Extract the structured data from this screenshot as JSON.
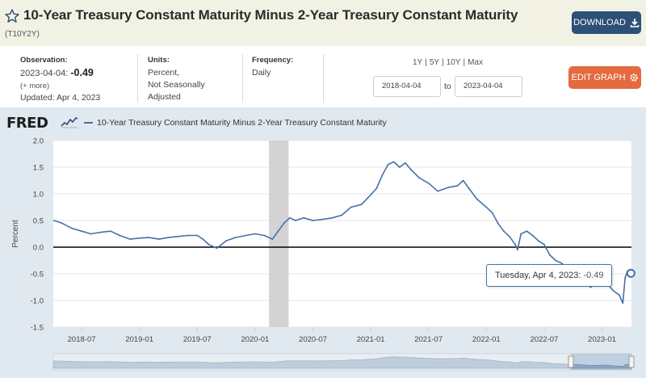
{
  "header": {
    "title": "10-Year Treasury Constant Maturity Minus 2-Year Treasury Constant Maturity",
    "series_id": "(T10Y2Y)",
    "download_label": "DOWNLOAD"
  },
  "meta": {
    "observation_label": "Observation:",
    "observation_date": "2023-04-04:",
    "observation_value": "-0.49",
    "more_label": "(+ more)",
    "updated": "Updated: Apr 4, 2023",
    "units_label": "Units:",
    "units_line1": "Percent,",
    "units_line2": "Not Seasonally",
    "units_line3": "Adjusted",
    "frequency_label": "Frequency:",
    "frequency_value": "Daily"
  },
  "controls": {
    "range_1y": "1Y",
    "range_5y": "5Y",
    "range_10y": "10Y",
    "range_max": "Max",
    "separator": "|",
    "start_date": "2018-04-04",
    "to_label": "to",
    "end_date": "2023-04-04",
    "edit_label": "EDIT GRAPH"
  },
  "graph": {
    "logo_text": "FRED",
    "legend_label": "10-Year Treasury Constant Maturity Minus 2-Year Treasury Constant Maturity",
    "tooltip_date": "Tuesday, Apr 4, 2023:",
    "tooltip_value": "-0.49"
  },
  "colors": {
    "series": "#4572a7",
    "recession": "#d3d3d3",
    "download_button": "#2d4f78",
    "edit_button": "#e56a3f",
    "graph_background": "#e1e9f0"
  },
  "chart_data": {
    "type": "line",
    "title": "10-Year Treasury Constant Maturity Minus 2-Year Treasury Constant Maturity",
    "ylabel": "Percent",
    "ylim": [
      -1.5,
      2.0
    ],
    "yticks": [
      "2.0",
      "1.5",
      "1.0",
      "0.5",
      "0.0",
      "-0.5",
      "-1.0",
      "-1.5"
    ],
    "ytick_values": [
      2.0,
      1.5,
      1.0,
      0.5,
      0.0,
      -0.5,
      -1.0,
      -1.5
    ],
    "xlim": [
      2018.255,
      2023.255
    ],
    "xticks": [
      "2018-07",
      "2019-01",
      "2019-07",
      "2020-01",
      "2020-07",
      "2021-01",
      "2021-07",
      "2022-01",
      "2022-07",
      "2023-01"
    ],
    "xtick_values": [
      2018.5,
      2019.0,
      2019.5,
      2020.0,
      2020.5,
      2021.0,
      2021.5,
      2022.0,
      2022.5,
      2023.0
    ],
    "recession": [
      2020.12,
      2020.29
    ],
    "series": [
      {
        "name": "T10Y2Y",
        "x": [
          2018.26,
          2018.33,
          2018.42,
          2018.5,
          2018.58,
          2018.67,
          2018.75,
          2018.83,
          2018.92,
          2019.0,
          2019.08,
          2019.17,
          2019.25,
          2019.33,
          2019.42,
          2019.5,
          2019.55,
          2019.6,
          2019.67,
          2019.75,
          2019.83,
          2019.92,
          2020.0,
          2020.08,
          2020.15,
          2020.2,
          2020.25,
          2020.3,
          2020.35,
          2020.42,
          2020.5,
          2020.58,
          2020.67,
          2020.75,
          2020.83,
          2020.92,
          2021.0,
          2021.05,
          2021.1,
          2021.15,
          2021.2,
          2021.25,
          2021.3,
          2021.35,
          2021.42,
          2021.5,
          2021.58,
          2021.67,
          2021.75,
          2021.8,
          2021.85,
          2021.92,
          2022.0,
          2022.05,
          2022.1,
          2022.15,
          2022.2,
          2022.25,
          2022.27,
          2022.3,
          2022.35,
          2022.4,
          2022.45,
          2022.5,
          2022.55,
          2022.6,
          2022.65,
          2022.7,
          2022.75,
          2022.8,
          2022.85,
          2022.9,
          2022.95,
          2023.0,
          2023.05,
          2023.1,
          2023.15,
          2023.18,
          2023.2,
          2023.22,
          2023.25
        ],
        "y": [
          0.5,
          0.45,
          0.35,
          0.3,
          0.25,
          0.28,
          0.3,
          0.22,
          0.15,
          0.17,
          0.18,
          0.15,
          0.18,
          0.2,
          0.22,
          0.22,
          0.15,
          0.05,
          -0.02,
          0.12,
          0.18,
          0.22,
          0.25,
          0.22,
          0.15,
          0.3,
          0.45,
          0.55,
          0.5,
          0.55,
          0.5,
          0.52,
          0.55,
          0.6,
          0.75,
          0.8,
          0.98,
          1.1,
          1.35,
          1.55,
          1.6,
          1.5,
          1.58,
          1.45,
          1.3,
          1.2,
          1.05,
          1.12,
          1.15,
          1.25,
          1.1,
          0.9,
          0.75,
          0.65,
          0.45,
          0.3,
          0.2,
          0.05,
          -0.05,
          0.25,
          0.3,
          0.22,
          0.12,
          0.05,
          -0.15,
          -0.25,
          -0.3,
          -0.4,
          -0.45,
          -0.5,
          -0.6,
          -0.75,
          -0.7,
          -0.65,
          -0.7,
          -0.82,
          -0.9,
          -1.05,
          -0.58,
          -0.45,
          -0.49
        ]
      }
    ]
  }
}
